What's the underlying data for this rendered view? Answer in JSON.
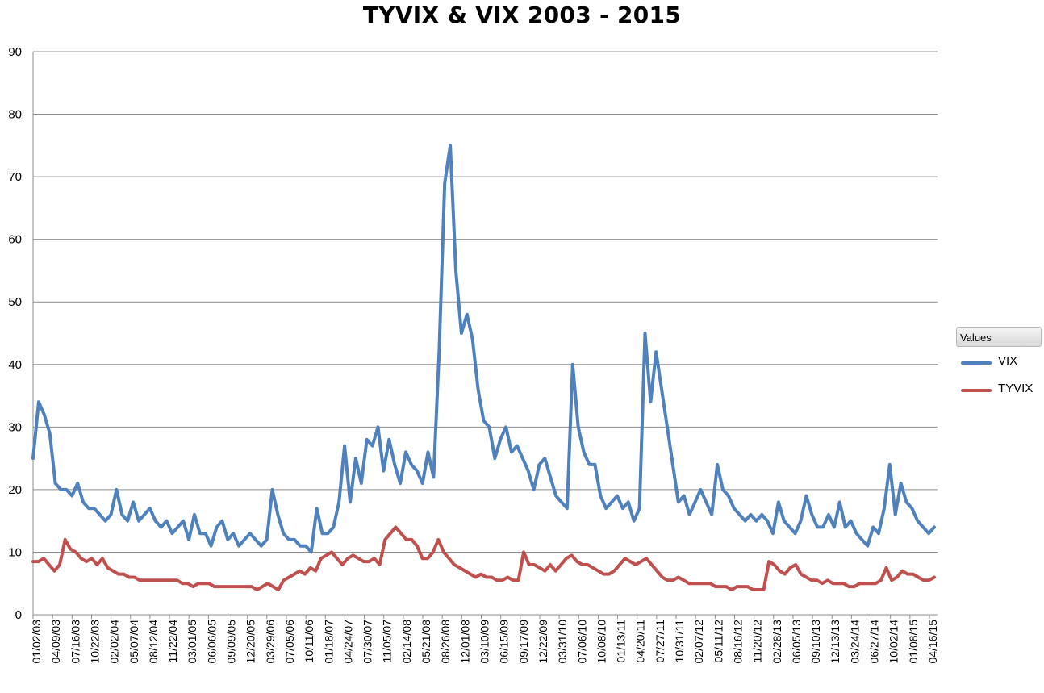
{
  "chart_data": {
    "type": "line",
    "title": "TYVIX & VIX 2003 - 2015",
    "xlabel": "",
    "ylabel": "",
    "ylim": [
      0,
      90
    ],
    "yticks": [
      0,
      10,
      20,
      30,
      40,
      50,
      60,
      70,
      80,
      90
    ],
    "grid": true,
    "legend_placement": "right",
    "legend_title": "Values",
    "x_ticks": [
      "01/02/03",
      "04/09/03",
      "07/16/03",
      "10/22/03",
      "02/02/04",
      "05/07/04",
      "08/12/04",
      "11/22/04",
      "03/01/05",
      "06/06/05",
      "09/09/05",
      "12/20/05",
      "03/29/06",
      "07/05/06",
      "10/11/06",
      "01/18/07",
      "04/24/07",
      "07/30/07",
      "11/05/07",
      "02/14/08",
      "05/21/08",
      "08/26/08",
      "12/01/08",
      "03/10/09",
      "06/15/09",
      "09/17/09",
      "12/22/09",
      "03/31/10",
      "07/06/10",
      "10/08/10",
      "01/13/11",
      "04/20/11",
      "07/27/11",
      "10/31/11",
      "02/07/12",
      "05/11/12",
      "08/16/12",
      "11/20/12",
      "02/28/13",
      "06/05/13",
      "09/10/13",
      "12/13/13",
      "03/24/14",
      "06/27/14",
      "10/02/14",
      "01/08/15",
      "04/16/15"
    ],
    "series": [
      {
        "name": "VIX",
        "color": "#4f81bd",
        "values": [
          25,
          34,
          32,
          29,
          21,
          20,
          20,
          19,
          21,
          18,
          17,
          17,
          16,
          15,
          16,
          20,
          16,
          15,
          18,
          15,
          16,
          17,
          15,
          14,
          15,
          13,
          14,
          15,
          12,
          16,
          13,
          13,
          11,
          14,
          15,
          12,
          13,
          11,
          12,
          13,
          12,
          11,
          12,
          20,
          16,
          13,
          12,
          12,
          11,
          11,
          10,
          17,
          13,
          13,
          14,
          18,
          27,
          18,
          25,
          21,
          28,
          27,
          30,
          23,
          28,
          24,
          21,
          26,
          24,
          23,
          21,
          26,
          22,
          42,
          69,
          75,
          55,
          45,
          48,
          44,
          36,
          31,
          30,
          25,
          28,
          30,
          26,
          27,
          25,
          23,
          20,
          24,
          25,
          22,
          19,
          18,
          17,
          40,
          30,
          26,
          24,
          24,
          19,
          17,
          18,
          19,
          17,
          18,
          15,
          17,
          45,
          34,
          42,
          36,
          30,
          24,
          18,
          19,
          16,
          18,
          20,
          18,
          16,
          24,
          20,
          19,
          17,
          16,
          15,
          16,
          15,
          16,
          15,
          13,
          18,
          15,
          14,
          13,
          15,
          19,
          16,
          14,
          14,
          16,
          14,
          18,
          14,
          15,
          13,
          12,
          11,
          14,
          13,
          17,
          24,
          16,
          21,
          18,
          17,
          15,
          14,
          13,
          14
        ]
      },
      {
        "name": "TYVIX",
        "color": "#c0504d",
        "values": [
          8.5,
          8.5,
          9,
          8,
          7,
          8,
          12,
          10.5,
          10,
          9,
          8.5,
          9,
          8,
          9,
          7.5,
          7,
          6.5,
          6.5,
          6,
          6,
          5.5,
          5.5,
          5.5,
          5.5,
          5.5,
          5.5,
          5.5,
          5.5,
          5,
          5,
          4.5,
          5,
          5,
          5,
          4.5,
          4.5,
          4.5,
          4.5,
          4.5,
          4.5,
          4.5,
          4.5,
          4,
          4.5,
          5,
          4.5,
          4,
          5.5,
          6,
          6.5,
          7,
          6.5,
          7.5,
          7,
          9,
          9.5,
          10,
          9,
          8,
          9,
          9.5,
          9,
          8.5,
          8.5,
          9,
          8,
          12,
          13,
          14,
          13,
          12,
          12,
          11,
          9,
          9,
          10,
          12,
          10,
          9,
          8,
          7.5,
          7,
          6.5,
          6,
          6.5,
          6,
          6,
          5.5,
          5.5,
          6,
          5.5,
          5.5,
          10,
          8,
          8,
          7.5,
          7,
          8,
          7,
          8,
          9,
          9.5,
          8.5,
          8,
          8,
          7.5,
          7,
          6.5,
          6.5,
          7,
          8,
          9,
          8.5,
          8,
          8.5,
          9,
          8,
          7,
          6,
          5.5,
          5.5,
          6,
          5.5,
          5,
          5,
          5,
          5,
          5,
          4.5,
          4.5,
          4.5,
          4,
          4.5,
          4.5,
          4.5,
          4,
          4,
          4,
          8.5,
          8,
          7,
          6.5,
          7.5,
          8,
          6.5,
          6,
          5.5,
          5.5,
          5,
          5.5,
          5,
          5,
          5,
          4.5,
          4.5,
          5,
          5,
          5,
          5,
          5.5,
          7.5,
          5.5,
          6,
          7,
          6.5,
          6.5,
          6,
          5.5,
          5.5,
          6
        ]
      }
    ]
  }
}
